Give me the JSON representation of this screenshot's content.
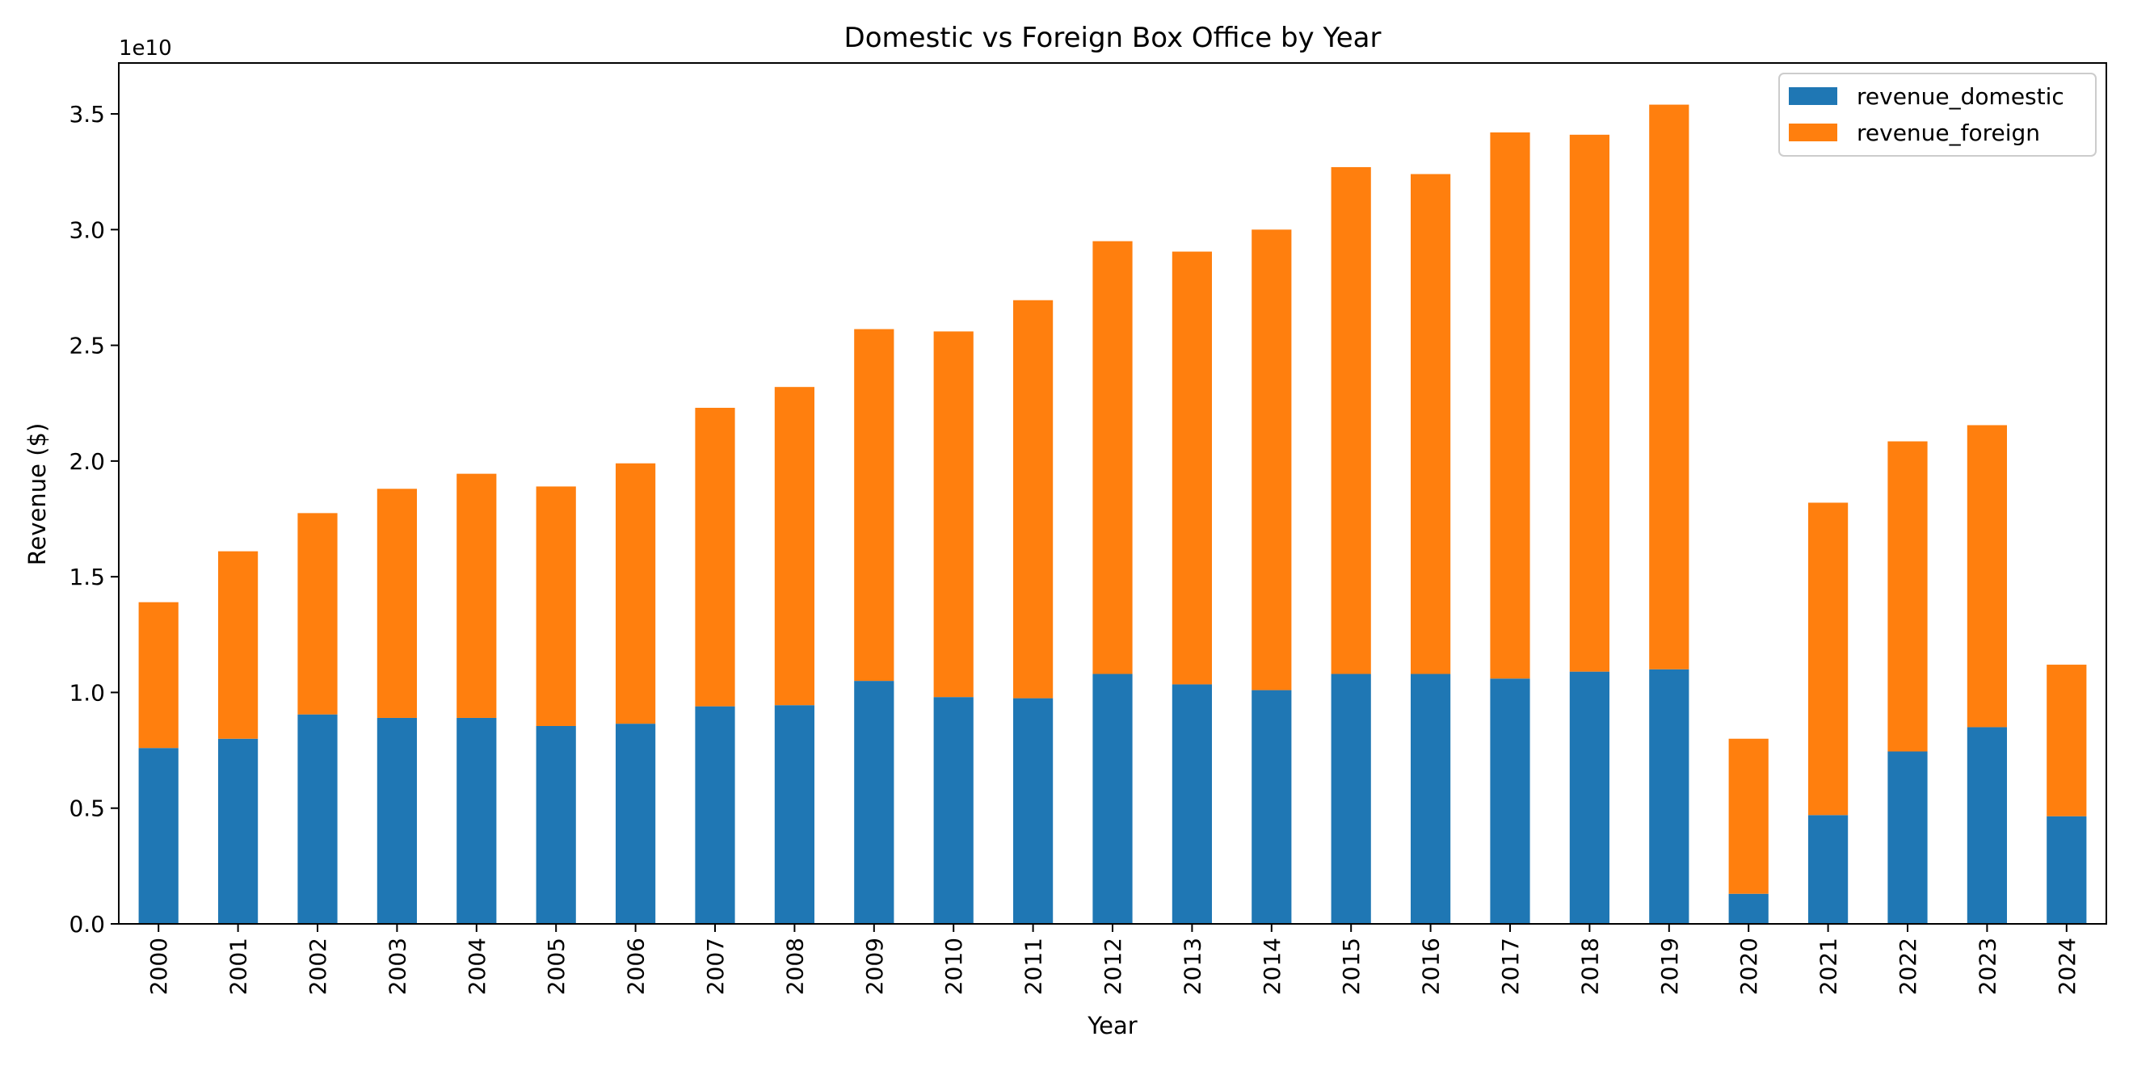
{
  "chart_data": {
    "type": "bar",
    "stacked": true,
    "title": "Domestic vs Foreign Box Office by Year",
    "xlabel": "Year",
    "ylabel": "Revenue ($)",
    "y_offset_label": "1e10",
    "categories": [
      "2000",
      "2001",
      "2002",
      "2003",
      "2004",
      "2005",
      "2006",
      "2007",
      "2008",
      "2009",
      "2010",
      "2011",
      "2012",
      "2013",
      "2014",
      "2015",
      "2016",
      "2017",
      "2018",
      "2019",
      "2020",
      "2021",
      "2022",
      "2023",
      "2024"
    ],
    "series": [
      {
        "name": "revenue_domestic",
        "color": "#1f77b4",
        "values": [
          7600000000.0,
          8000000000.0,
          9050000000.0,
          8900000000.0,
          8900000000.0,
          8550000000.0,
          8650000000.0,
          9400000000.0,
          9450000000.0,
          10500000000.0,
          9800000000.0,
          9750000000.0,
          10800000000.0,
          10350000000.0,
          10100000000.0,
          10800000000.0,
          10800000000.0,
          10600000000.0,
          10900000000.0,
          11000000000.0,
          1300000000.0,
          4700000000.0,
          7450000000.0,
          8500000000.0,
          4650000000.0
        ]
      },
      {
        "name": "revenue_foreign",
        "color": "#ff7f0e",
        "values": [
          6300000000.0,
          8100000000.0,
          8700000000.0,
          9900000000.0,
          10550000000.0,
          10350000000.0,
          11250000000.0,
          12900000000.0,
          13750000000.0,
          15200000000.0,
          15800000000.0,
          17200000000.0,
          18700000000.0,
          18700000000.0,
          19900000000.0,
          21900000000.0,
          21600000000.0,
          23600000000.0,
          23200000000.0,
          24400000000.0,
          6700000000.0,
          13500000000.0,
          13400000000.0,
          13050000000.0,
          6550000000.0
        ]
      }
    ],
    "y_ticks": [
      0,
      5000000000.0,
      10000000000.0,
      15000000000.0,
      20000000000.0,
      25000000000.0,
      30000000000.0,
      35000000000.0
    ],
    "y_tick_labels": [
      "0.0",
      "0.5",
      "1.0",
      "1.5",
      "2.0",
      "2.5",
      "3.0",
      "3.5"
    ],
    "ylim": [
      0,
      37200000000.0
    ],
    "grid": false,
    "legend_position": "top-right"
  }
}
